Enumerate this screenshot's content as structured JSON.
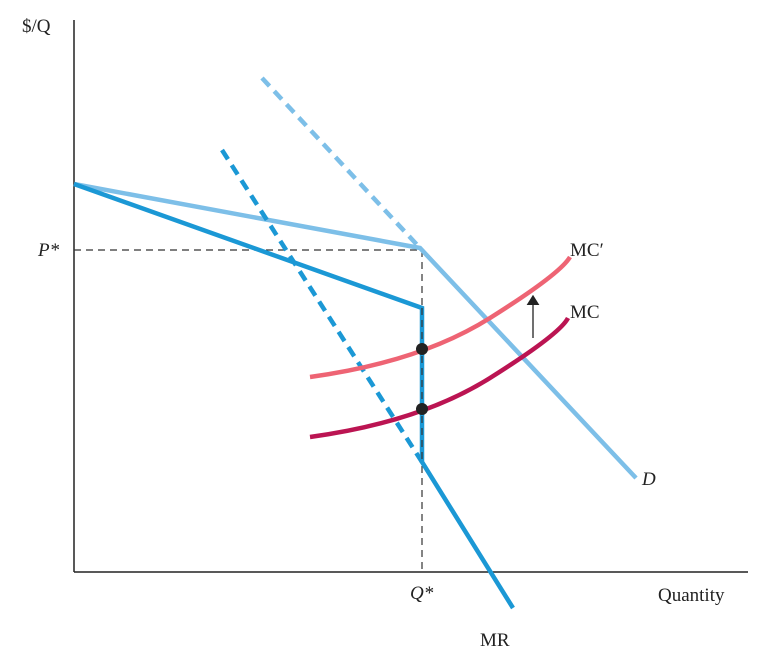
{
  "axes": {
    "y_label": "$/Q",
    "x_label": "Quantity"
  },
  "markers": {
    "price": "P*",
    "quantity": "Q*"
  },
  "curves": {
    "demand": {
      "label": "D",
      "color": "#7dbfe8"
    },
    "marginal_revenue": {
      "label": "MR",
      "color": "#1b98d5"
    },
    "marginal_cost": {
      "label": "MC",
      "color": "#bb1452"
    },
    "marginal_cost_shifted": {
      "label": "MC′",
      "color": "#ee6474"
    }
  }
}
